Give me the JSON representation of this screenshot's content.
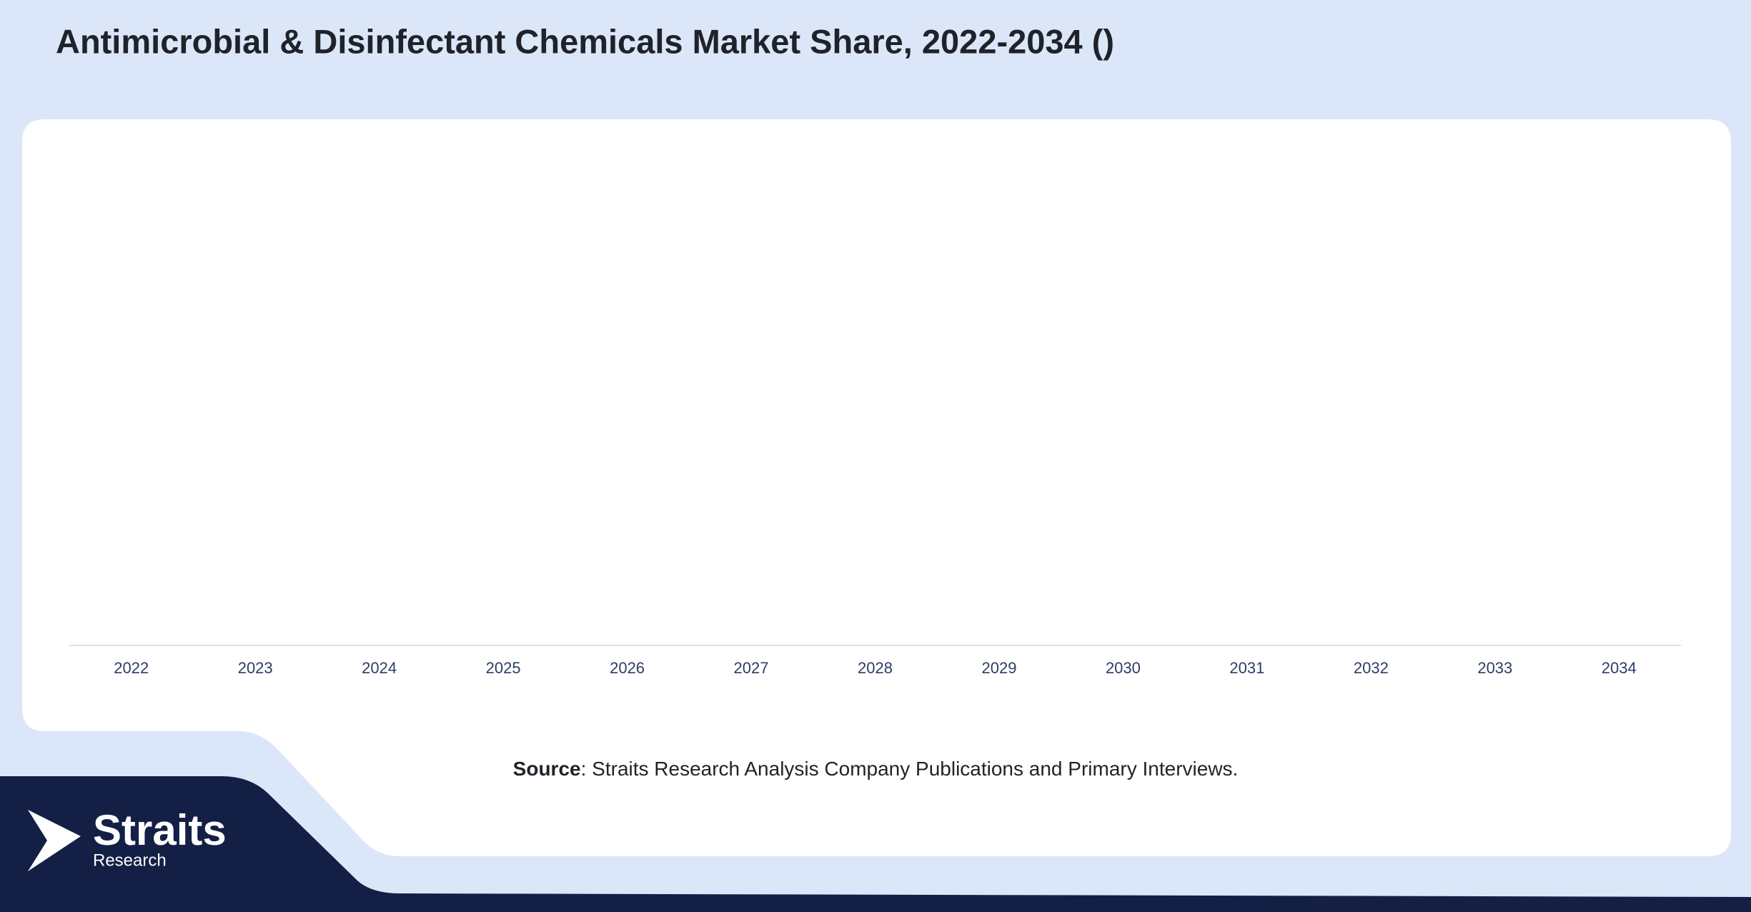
{
  "chart_data": {
    "type": "bar",
    "title": "Antimicrobial & Disinfectant Chemicals Market Share, 2022-2034 ()",
    "categories": [
      "2022",
      "2023",
      "2024",
      "2025",
      "2026",
      "2027",
      "2028",
      "2029",
      "2030",
      "2031",
      "2032",
      "2033",
      "2034"
    ]
  },
  "source": {
    "label": "Source",
    "text": ": Straits Research Analysis Company Publications and Primary Interviews."
  },
  "logo": {
    "name": "Straits",
    "tagline": "Research"
  }
}
